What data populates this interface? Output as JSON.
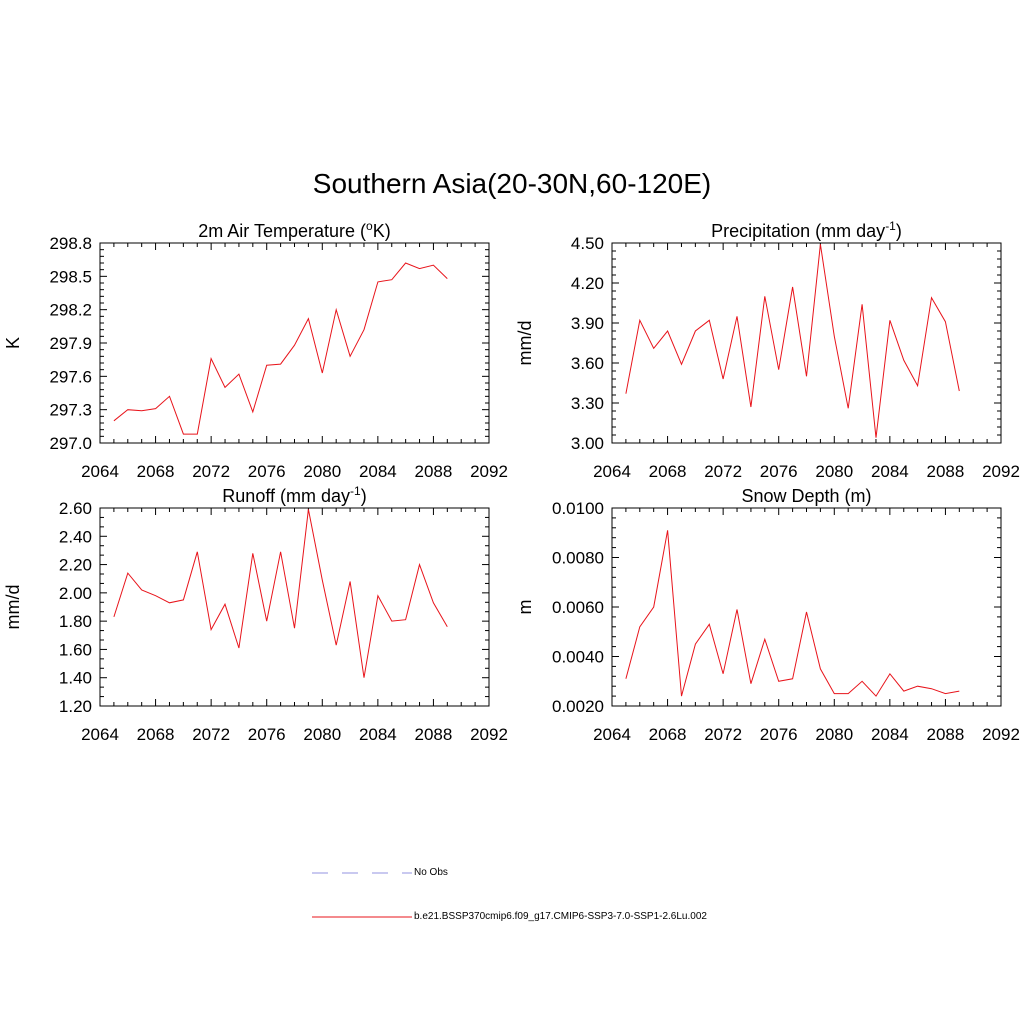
{
  "page": {
    "title": "Southern Asia(20-30N,60-120E)"
  },
  "legend": {
    "items": [
      {
        "label": "No Obs",
        "style": "dashed",
        "color": "#a9a9e6"
      },
      {
        "label": "b.e21.BSSP370cmip6.f09_g17.CMIP6-SSP3-7.0-SSP1-2.6Lu.002",
        "style": "solid",
        "color": "#e8141b"
      }
    ]
  },
  "chart_data": [
    {
      "type": "line",
      "title": "2m Air Temperature (",
      "title_sup": "o",
      "title_after": "K)",
      "ylabel": "K",
      "xlim": [
        2064,
        2092
      ],
      "ylim": [
        297.0,
        298.8
      ],
      "xticks": [
        "2064",
        "2068",
        "2072",
        "2076",
        "2080",
        "2084",
        "2088",
        "2092"
      ],
      "yticks": [
        "297.0",
        "297.3",
        "297.6",
        "297.9",
        "298.2",
        "298.5",
        "298.8"
      ],
      "series": [
        {
          "color": "#e8141b",
          "x": [
            2065,
            2066,
            2067,
            2068,
            2069,
            2070,
            2071,
            2072,
            2073,
            2074,
            2075,
            2076,
            2077,
            2078,
            2079,
            2080,
            2081,
            2082,
            2083,
            2084,
            2085,
            2086,
            2087,
            2088,
            2089
          ],
          "y": [
            297.2,
            297.3,
            297.29,
            297.31,
            297.42,
            297.08,
            297.08,
            297.76,
            297.5,
            297.62,
            297.28,
            297.7,
            297.71,
            297.88,
            298.12,
            297.63,
            298.2,
            297.78,
            298.02,
            298.45,
            298.47,
            298.62,
            298.57,
            298.6,
            298.48
          ]
        }
      ]
    },
    {
      "type": "line",
      "title": "Precipitation (mm day",
      "title_sup": "-1",
      "title_after": ")",
      "ylabel": "mm/d",
      "xlim": [
        2064,
        2092
      ],
      "ylim": [
        3.0,
        4.5
      ],
      "xticks": [
        "2064",
        "2068",
        "2072",
        "2076",
        "2080",
        "2084",
        "2088",
        "2092"
      ],
      "yticks": [
        "3.00",
        "3.30",
        "3.60",
        "3.90",
        "4.20",
        "4.50"
      ],
      "series": [
        {
          "color": "#e8141b",
          "x": [
            2065,
            2066,
            2067,
            2068,
            2069,
            2070,
            2071,
            2072,
            2073,
            2074,
            2075,
            2076,
            2077,
            2078,
            2079,
            2080,
            2081,
            2082,
            2083,
            2084,
            2085,
            2086,
            2087,
            2088,
            2089
          ],
          "y": [
            3.37,
            3.92,
            3.71,
            3.84,
            3.59,
            3.84,
            3.92,
            3.48,
            3.95,
            3.27,
            4.1,
            3.55,
            4.17,
            3.5,
            4.49,
            3.8,
            3.26,
            4.04,
            3.04,
            3.92,
            3.62,
            3.43,
            4.09,
            3.91,
            3.39
          ]
        }
      ]
    },
    {
      "type": "line",
      "title": "Runoff (mm day",
      "title_sup": "-1",
      "title_after": ")",
      "ylabel": "mm/d",
      "xlim": [
        2064,
        2092
      ],
      "ylim": [
        1.2,
        2.6
      ],
      "xticks": [
        "2064",
        "2068",
        "2072",
        "2076",
        "2080",
        "2084",
        "2088",
        "2092"
      ],
      "yticks": [
        "1.20",
        "1.40",
        "1.60",
        "1.80",
        "2.00",
        "2.20",
        "2.40",
        "2.60"
      ],
      "series": [
        {
          "color": "#e8141b",
          "x": [
            2065,
            2066,
            2067,
            2068,
            2069,
            2070,
            2071,
            2072,
            2073,
            2074,
            2075,
            2076,
            2077,
            2078,
            2079,
            2080,
            2081,
            2082,
            2083,
            2084,
            2085,
            2086,
            2087,
            2088,
            2089
          ],
          "y": [
            1.83,
            2.14,
            2.02,
            1.98,
            1.93,
            1.95,
            2.29,
            1.74,
            1.92,
            1.61,
            2.28,
            1.8,
            2.29,
            1.75,
            2.59,
            2.09,
            1.63,
            2.08,
            1.4,
            1.98,
            1.8,
            1.81,
            2.2,
            1.93,
            1.76
          ]
        }
      ]
    },
    {
      "type": "line",
      "title": "Snow Depth (m)",
      "title_sup": "",
      "title_after": "",
      "ylabel": "m",
      "xlim": [
        2064,
        2092
      ],
      "ylim": [
        0.002,
        0.01
      ],
      "xticks": [
        "2064",
        "2068",
        "2072",
        "2076",
        "2080",
        "2084",
        "2088",
        "2092"
      ],
      "yticks": [
        "0.0020",
        "0.0040",
        "0.0060",
        "0.0080",
        "0.0100"
      ],
      "series": [
        {
          "color": "#e8141b",
          "x": [
            2065,
            2066,
            2067,
            2068,
            2069,
            2070,
            2071,
            2072,
            2073,
            2074,
            2075,
            2076,
            2077,
            2078,
            2079,
            2080,
            2081,
            2082,
            2083,
            2084,
            2085,
            2086,
            2087,
            2088,
            2089
          ],
          "y": [
            0.0031,
            0.0052,
            0.006,
            0.0091,
            0.0024,
            0.0045,
            0.0053,
            0.0033,
            0.0059,
            0.0029,
            0.0047,
            0.003,
            0.0031,
            0.0058,
            0.0035,
            0.0025,
            0.0025,
            0.003,
            0.0024,
            0.0033,
            0.0026,
            0.0028,
            0.0027,
            0.0025,
            0.0026
          ]
        }
      ]
    }
  ]
}
